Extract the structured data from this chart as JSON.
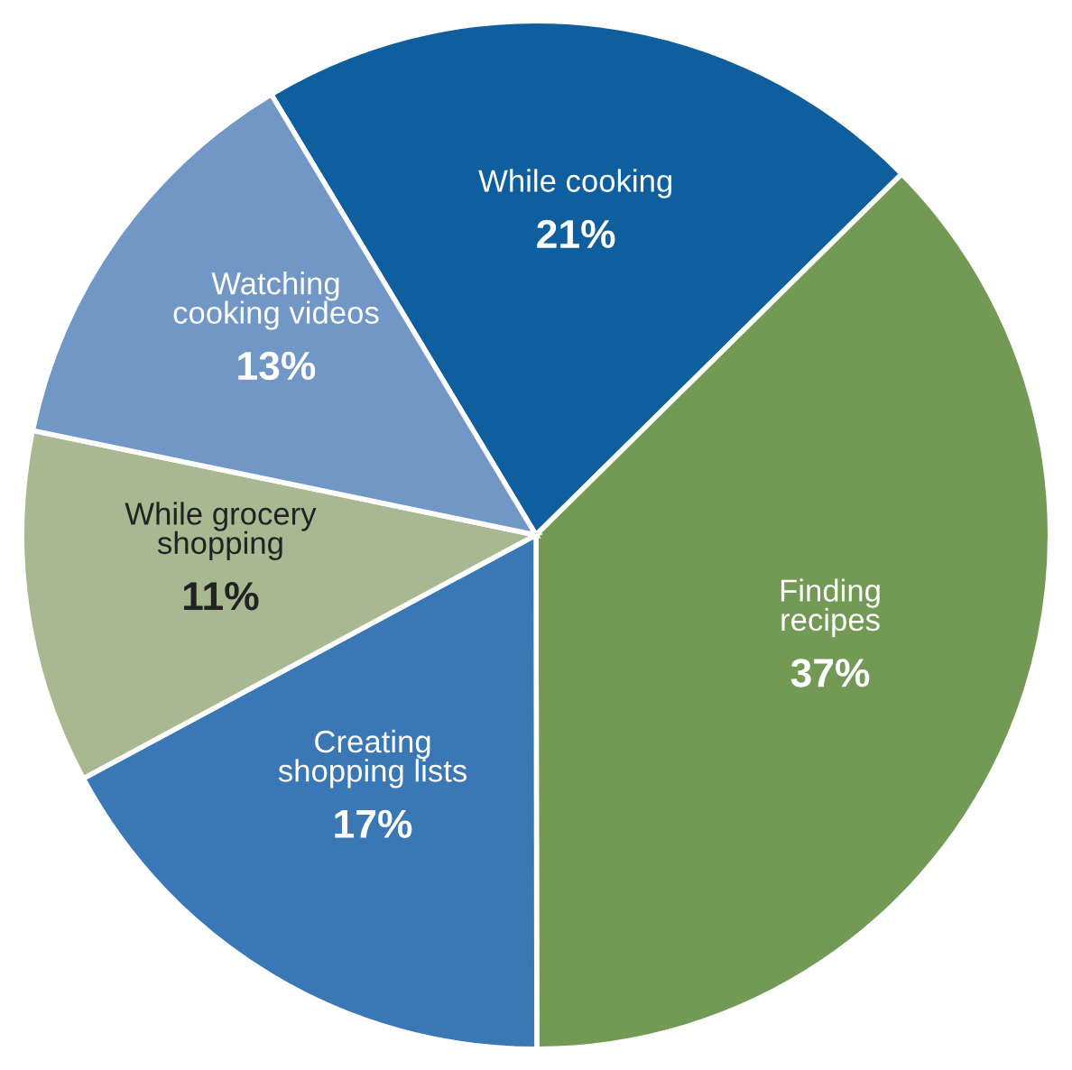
{
  "chart_data": {
    "type": "pie",
    "categories": [
      "While cooking",
      "Finding\nrecipes",
      "Creating\nshopping lists",
      "While grocery\nshopping",
      "Watching\ncooking videos"
    ],
    "values": [
      21,
      37,
      17,
      11,
      13
    ],
    "value_labels": [
      "21%",
      "37%",
      "17%",
      "11%",
      "13%"
    ],
    "colors": [
      "#0f5f9f",
      "#739a54",
      "#3a78b5",
      "#a8b891",
      "#7097c6"
    ]
  }
}
